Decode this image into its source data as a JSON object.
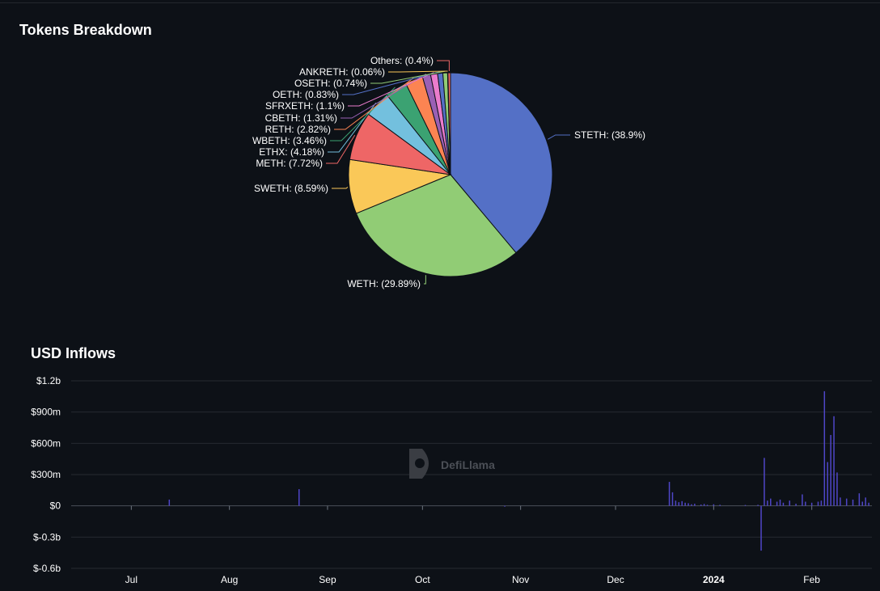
{
  "pie_title": "Tokens Breakdown",
  "bar_title": "USD Inflows",
  "watermark": "DefiLlama",
  "chart_data": [
    {
      "type": "pie",
      "title": "Tokens Breakdown",
      "slices": [
        {
          "name": "STETH",
          "value": 38.9,
          "label": "STETH: (38.9%)",
          "color": "#5470c6"
        },
        {
          "name": "WETH",
          "value": 29.89,
          "label": "WETH: (29.89%)",
          "color": "#91cc75"
        },
        {
          "name": "SWETH",
          "value": 8.59,
          "label": "SWETH: (8.59%)",
          "color": "#fac858"
        },
        {
          "name": "METH",
          "value": 7.72,
          "label": "METH: (7.72%)",
          "color": "#ee6666"
        },
        {
          "name": "ETHX",
          "value": 4.18,
          "label": "ETHX: (4.18%)",
          "color": "#73c0de"
        },
        {
          "name": "WBETH",
          "value": 3.46,
          "label": "WBETH: (3.46%)",
          "color": "#3ba272"
        },
        {
          "name": "RETH",
          "value": 2.82,
          "label": "RETH: (2.82%)",
          "color": "#fc8452"
        },
        {
          "name": "CBETH",
          "value": 1.31,
          "label": "CBETH: (1.31%)",
          "color": "#9a60b4"
        },
        {
          "name": "SFRXETH",
          "value": 1.1,
          "label": "SFRXETH: (1.1%)",
          "color": "#ea7ccc"
        },
        {
          "name": "OETH",
          "value": 0.83,
          "label": "OETH: (0.83%)",
          "color": "#5470c6"
        },
        {
          "name": "OSETH",
          "value": 0.74,
          "label": "OSETH: (0.74%)",
          "color": "#91cc75"
        },
        {
          "name": "ANKRETH",
          "value": 0.06,
          "label": "ANKRETH: (0.06%)",
          "color": "#fac858"
        },
        {
          "name": "Others",
          "value": 0.4,
          "label": "Others: (0.4%)",
          "color": "#ee6666"
        }
      ]
    },
    {
      "type": "bar",
      "title": "USD Inflows",
      "units": "USD millions",
      "ylim": [
        -600,
        1200
      ],
      "y_ticks": [
        1200,
        900,
        600,
        300,
        0,
        -300,
        -600
      ],
      "y_tick_labels": [
        "$1.2b",
        "$900m",
        "$600m",
        "$300m",
        "$0",
        "$-0.3b",
        "$-0.6b"
      ],
      "x_ticks": [
        {
          "date": "2023-07-01",
          "label": "Jul",
          "bold": false
        },
        {
          "date": "2023-08-01",
          "label": "Aug",
          "bold": false
        },
        {
          "date": "2023-09-01",
          "label": "Sep",
          "bold": false
        },
        {
          "date": "2023-10-01",
          "label": "Oct",
          "bold": false
        },
        {
          "date": "2023-11-01",
          "label": "Nov",
          "bold": false
        },
        {
          "date": "2023-12-01",
          "label": "Dec",
          "bold": false
        },
        {
          "date": "2024-01-01",
          "label": "2024",
          "bold": true
        },
        {
          "date": "2024-02-01",
          "label": "Feb",
          "bold": false
        }
      ],
      "x_range": [
        "2023-06-12",
        "2024-02-20"
      ],
      "bar_color": "#4f46c8",
      "points": [
        {
          "date": "2023-07-13",
          "value": 60
        },
        {
          "date": "2023-08-23",
          "value": 160
        },
        {
          "date": "2023-10-27",
          "value": -8
        },
        {
          "date": "2023-12-18",
          "value": 230
        },
        {
          "date": "2023-12-19",
          "value": 130
        },
        {
          "date": "2023-12-20",
          "value": 50
        },
        {
          "date": "2023-12-21",
          "value": 35
        },
        {
          "date": "2023-12-22",
          "value": 45
        },
        {
          "date": "2023-12-23",
          "value": 30
        },
        {
          "date": "2023-12-24",
          "value": 25
        },
        {
          "date": "2023-12-25",
          "value": 15
        },
        {
          "date": "2023-12-26",
          "value": 20
        },
        {
          "date": "2023-12-28",
          "value": 12
        },
        {
          "date": "2023-12-29",
          "value": 18
        },
        {
          "date": "2023-12-30",
          "value": 10
        },
        {
          "date": "2024-01-01",
          "value": 15
        },
        {
          "date": "2024-01-03",
          "value": 10
        },
        {
          "date": "2024-01-11",
          "value": 8
        },
        {
          "date": "2024-01-15",
          "value": 10
        },
        {
          "date": "2024-01-16",
          "value": -430
        },
        {
          "date": "2024-01-17",
          "value": 460
        },
        {
          "date": "2024-01-18",
          "value": 50
        },
        {
          "date": "2024-01-19",
          "value": 70
        },
        {
          "date": "2024-01-21",
          "value": 40
        },
        {
          "date": "2024-01-22",
          "value": 60
        },
        {
          "date": "2024-01-23",
          "value": 30
        },
        {
          "date": "2024-01-25",
          "value": 50
        },
        {
          "date": "2024-01-27",
          "value": 20
        },
        {
          "date": "2024-01-29",
          "value": 110
        },
        {
          "date": "2024-01-30",
          "value": 40
        },
        {
          "date": "2024-02-01",
          "value": 30
        },
        {
          "date": "2024-02-03",
          "value": 40
        },
        {
          "date": "2024-02-04",
          "value": 50
        },
        {
          "date": "2024-02-05",
          "value": 1100
        },
        {
          "date": "2024-02-06",
          "value": 420
        },
        {
          "date": "2024-02-07",
          "value": 680
        },
        {
          "date": "2024-02-08",
          "value": 860
        },
        {
          "date": "2024-02-09",
          "value": 320
        },
        {
          "date": "2024-02-10",
          "value": 80
        },
        {
          "date": "2024-02-12",
          "value": 70
        },
        {
          "date": "2024-02-14",
          "value": 60
        },
        {
          "date": "2024-02-16",
          "value": 120
        },
        {
          "date": "2024-02-17",
          "value": 40
        },
        {
          "date": "2024-02-18",
          "value": 80
        },
        {
          "date": "2024-02-19",
          "value": 30
        }
      ]
    }
  ]
}
